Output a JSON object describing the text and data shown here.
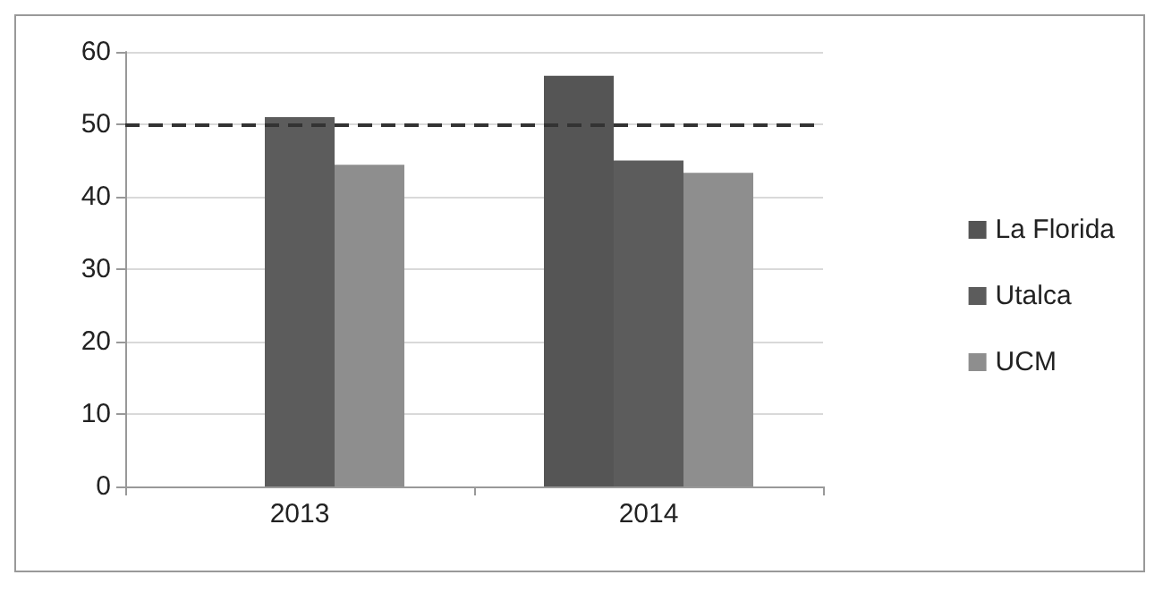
{
  "chart_data": {
    "type": "bar",
    "categories": [
      "2013",
      "2014"
    ],
    "series": [
      {
        "name": "La Florida",
        "color": "#555555",
        "values": [
          null,
          56.7
        ]
      },
      {
        "name": "Utalca",
        "color": "#5c5c5c",
        "values": [
          51.0,
          45.0
        ]
      },
      {
        "name": "UCM",
        "color": "#8e8e8e",
        "values": [
          44.4,
          43.3
        ]
      }
    ],
    "ylim": [
      0,
      60
    ],
    "yticks": [
      0,
      10,
      20,
      30,
      40,
      50,
      60
    ],
    "grid": "y",
    "legend": "right",
    "ref_lines": [
      {
        "axis": "y",
        "value": 50,
        "color": "#333333",
        "line_style": "dashed"
      }
    ]
  }
}
